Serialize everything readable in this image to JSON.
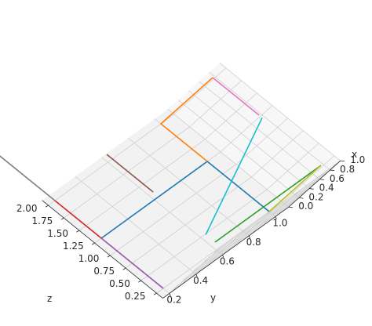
{
  "chart_data": {
    "type": "line3d",
    "title": "",
    "grid": true,
    "axes": {
      "x": {
        "label": "x",
        "range": [
          0.0,
          1.0
        ],
        "ticks": [
          "0.0",
          "0.2",
          "0.4",
          "0.6",
          "0.8",
          "1.0"
        ]
      },
      "y": {
        "label": "y",
        "range": [
          0.15,
          1.1
        ],
        "ticks": [
          "0.2",
          "0.4",
          "0.6",
          "0.8",
          "1.0"
        ]
      },
      "z": {
        "label": "z",
        "range": [
          0.15,
          2.1
        ],
        "ticks": [
          "0.25",
          "0.50",
          "0.75",
          "1.00",
          "1.25",
          "1.50",
          "1.75",
          "2.00"
        ]
      }
    },
    "colors": {
      "pane_floor": "#f2f2f2",
      "pane_wall_z": "#ebebeb",
      "pane_wall_y": "#f7f7f7",
      "grid": "#cfcfcf",
      "axis": "#262626"
    },
    "series": [
      {
        "color": "#1f77b4",
        "x": [
          0,
          0,
          0
        ],
        "y": [
          1,
          1,
          0.2
        ],
        "z": [
          0.25,
          1.25,
          1.25
        ]
      },
      {
        "color": "#ff7f0e",
        "x": [
          0,
          0,
          1
        ],
        "y": [
          1,
          1,
          1
        ],
        "z": [
          1.25,
          2,
          2
        ]
      },
      {
        "color": "#2ca02c",
        "x": [
          1,
          1
        ],
        "y": [
          1,
          0.2
        ],
        "z": [
          0.25,
          0.25
        ]
      },
      {
        "color": "#d62728",
        "x": [
          0,
          0
        ],
        "y": [
          0.2,
          0.2
        ],
        "z": [
          2,
          0.25
        ]
      },
      {
        "color": "#9467bd",
        "x": [
          0,
          0
        ],
        "y": [
          0.2,
          0.2
        ],
        "z": [
          0.25,
          1.25
        ]
      },
      {
        "color": "#8c564b",
        "x": [
          1,
          1
        ],
        "y": [
          0.2,
          0.2
        ],
        "z": [
          1.25,
          2
        ]
      },
      {
        "color": "#e377c2",
        "x": [
          1,
          1
        ],
        "y": [
          1,
          1
        ],
        "z": [
          2,
          1.25
        ]
      },
      {
        "color": "#7f7f7f",
        "x": [
          0,
          0
        ],
        "y": [
          0.2,
          0.2
        ],
        "z": [
          2,
          2.9
        ]
      },
      {
        "color": "#bcbd22",
        "x": [
          0,
          1
        ],
        "y": [
          1,
          1
        ],
        "z": [
          0.25,
          0.25
        ]
      },
      {
        "color": "#17becf",
        "x": [
          1,
          1
        ],
        "y": [
          0.2,
          1
        ],
        "z": [
          0.4,
          1.2
        ]
      }
    ]
  }
}
